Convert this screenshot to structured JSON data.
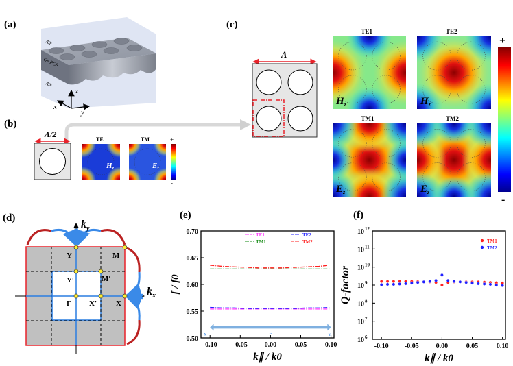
{
  "panels": {
    "a": {
      "label": "(a)",
      "air_top": "Air",
      "slab": "Ge PCS",
      "air_bottom": "Air",
      "axis_x": "x",
      "axis_y": "y",
      "axis_z": "z"
    },
    "b": {
      "label": "(b)",
      "period": "Λ/2",
      "te_title": "TE",
      "tm_title": "TM",
      "te_field": "H",
      "tm_field": "E",
      "sub": "z",
      "cbar_plus": "+",
      "cbar_minus": "-"
    },
    "c": {
      "label": "(c)",
      "period": "Λ",
      "maps": [
        {
          "title": "TE1",
          "field": "H"
        },
        {
          "title": "TE2",
          "field": "H"
        },
        {
          "title": "TM1",
          "field": "E"
        },
        {
          "title": "TM2",
          "field": "E"
        }
      ],
      "sub": "z",
      "cbar_plus": "+",
      "cbar_minus": "-"
    },
    "d": {
      "label": "(d)",
      "ky": "k",
      "ky_sub": "y",
      "kx": "k",
      "kx_sub": "x",
      "points": {
        "Y": "Y",
        "M": "M",
        "Yp": "Y′",
        "Mp": "M′",
        "G": "Γ",
        "Xp": "X′",
        "X": "X"
      }
    },
    "e": {
      "label": "(e)"
    },
    "f": {
      "label": "(f)"
    }
  },
  "colors": {
    "red": "#e8222a",
    "blue": "#2a7de1",
    "grey": "#c0c0c0",
    "magenta": "#ff33ff",
    "te2": "#2222ff",
    "green": "#138a13",
    "tm2": "#ff2020"
  },
  "chart_data": [
    {
      "type": "line",
      "panel": "e",
      "xlabel": "k∥ / k0",
      "ylabel": "f / f0",
      "xlim": [
        -0.115,
        0.105
      ],
      "ylim": [
        0.5,
        0.7
      ],
      "xticks": [
        "-0.10",
        "-0.05",
        "0.00",
        "0.05",
        "0.10"
      ],
      "xtick_values": [
        -0.1,
        -0.05,
        0,
        0.05,
        0.1
      ],
      "yticks": [
        "0.50",
        "0.55",
        "0.60",
        "0.65",
        "0.70"
      ],
      "ytick_values": [
        0.5,
        0.55,
        0.6,
        0.65,
        0.7
      ],
      "legend_position": "top-right",
      "x": [
        -0.1,
        -0.08,
        -0.06,
        -0.04,
        -0.02,
        0,
        0.02,
        0.04,
        0.06,
        0.08,
        0.1
      ],
      "series": [
        {
          "name": "TE1",
          "color": "#ff33ff",
          "values": [
            0.554,
            0.554,
            0.554,
            0.554,
            0.554,
            0.554,
            0.554,
            0.554,
            0.554,
            0.554,
            0.554
          ]
        },
        {
          "name": "TE2",
          "color": "#2222ff",
          "values": [
            0.557,
            0.556,
            0.556,
            0.555,
            0.555,
            0.555,
            0.555,
            0.555,
            0.556,
            0.556,
            0.557
          ]
        },
        {
          "name": "TM1",
          "color": "#138a13",
          "values": [
            0.629,
            0.629,
            0.629,
            0.629,
            0.629,
            0.629,
            0.629,
            0.629,
            0.629,
            0.629,
            0.629
          ]
        },
        {
          "name": "TM2",
          "color": "#ff2020",
          "values": [
            0.636,
            0.634,
            0.633,
            0.632,
            0.631,
            0.631,
            0.631,
            0.632,
            0.633,
            0.634,
            0.636
          ]
        }
      ],
      "path_labels": [
        "X",
        "Γ",
        "Y"
      ],
      "path_arrow_y": 0.52
    },
    {
      "type": "scatter",
      "panel": "f",
      "xlabel": "k∥ / k0",
      "ylabel": "Q-factor",
      "xlim": [
        -0.115,
        0.105
      ],
      "ylim_log10": [
        6,
        12
      ],
      "xticks": [
        "-0.10",
        "-0.05",
        "0.00",
        "0.05",
        "0.10"
      ],
      "xtick_values": [
        -0.1,
        -0.05,
        0,
        0.05,
        0.1
      ],
      "yticks": [
        "10",
        "10",
        "10",
        "10",
        "10",
        "10",
        "10"
      ],
      "ytick_exponents": [
        "6",
        "7",
        "8",
        "9",
        "10",
        "11",
        "12"
      ],
      "legend_position": "top-right",
      "x": [
        -0.1,
        -0.09,
        -0.08,
        -0.07,
        -0.06,
        -0.05,
        -0.04,
        -0.03,
        -0.02,
        -0.01,
        0,
        0.01,
        0.02,
        0.03,
        0.04,
        0.05,
        0.06,
        0.07,
        0.08,
        0.09,
        0.1
      ],
      "series": [
        {
          "name": "TM1",
          "color": "#ff2020",
          "values": [
            1600000000.0,
            1600000000.0,
            1600000000.0,
            1600000000.0,
            1600000000.0,
            1600000000.0,
            1550000000.0,
            1500000000.0,
            1500000000.0,
            1400000000.0,
            1000000000.0,
            1400000000.0,
            1500000000.0,
            1500000000.0,
            1500000000.0,
            1500000000.0,
            1500000000.0,
            1450000000.0,
            1400000000.0,
            1350000000.0,
            1300000000.0
          ]
        },
        {
          "name": "TM2",
          "color": "#2020ff",
          "values": [
            1050000000.0,
            1100000000.0,
            1100000000.0,
            1150000000.0,
            1200000000.0,
            1300000000.0,
            1400000000.0,
            1500000000.0,
            1600000000.0,
            1800000000.0,
            3600000000.0,
            1800000000.0,
            1600000000.0,
            1500000000.0,
            1400000000.0,
            1300000000.0,
            1200000000.0,
            1150000000.0,
            1100000000.0,
            1000000000.0,
            950000000.0
          ]
        }
      ]
    }
  ]
}
